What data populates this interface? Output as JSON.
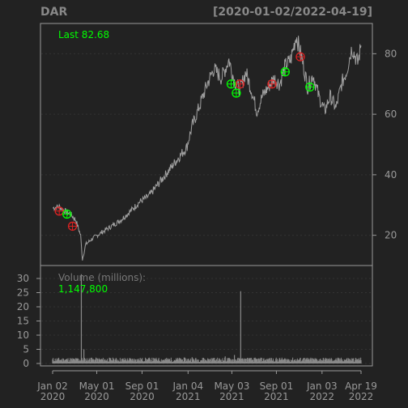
{
  "header": {
    "symbol": "DAR",
    "range": "[2020-01-02/2022-04-19]"
  },
  "price_panel": {
    "last_label": "Last 82.68",
    "y_ticks": [
      20,
      40,
      60,
      80
    ]
  },
  "volume_panel": {
    "label": "Volume (millions):",
    "value": "1,147,800",
    "y_ticks": [
      0,
      5,
      10,
      15,
      20,
      25,
      30
    ]
  },
  "x_axis": {
    "ticks": [
      {
        "date": "2020-01-02",
        "top": "Jan 02",
        "bottom": "2020"
      },
      {
        "date": "2020-05-01",
        "top": "May 01",
        "bottom": "2020"
      },
      {
        "date": "2020-09-01",
        "top": "Sep 01",
        "bottom": "2020"
      },
      {
        "date": "2021-01-04",
        "top": "Jan 04",
        "bottom": "2021"
      },
      {
        "date": "2021-05-03",
        "top": "May 03",
        "bottom": "2021"
      },
      {
        "date": "2021-09-01",
        "top": "Sep 01",
        "bottom": "2021"
      },
      {
        "date": "2022-01-03",
        "top": "Jan 03",
        "bottom": "2022"
      },
      {
        "date": "2022-04-19",
        "top": "Apr 19",
        "bottom": "2022"
      }
    ]
  },
  "colors": {
    "background": "#222222",
    "frame": "#999999",
    "grid": "#333333",
    "price_line": "#a0a0a0",
    "volume": "#8a8a8a",
    "green": "#00ff00",
    "red": "#dd2222",
    "title": "#888888",
    "tick_text": "#999999"
  },
  "chart_data": {
    "type": "line",
    "x_range": [
      "2020-01-02",
      "2022-04-19"
    ],
    "price": {
      "ylim": [
        10,
        90
      ],
      "x": [
        "2020-01-02",
        "2020-01-20",
        "2020-02-05",
        "2020-02-20",
        "2020-03-05",
        "2020-03-18",
        "2020-03-23",
        "2020-04-01",
        "2020-04-20",
        "2020-05-15",
        "2020-06-10",
        "2020-07-05",
        "2020-08-01",
        "2020-08-25",
        "2020-09-20",
        "2020-10-15",
        "2020-11-10",
        "2020-12-05",
        "2020-12-31",
        "2021-01-15",
        "2021-02-05",
        "2021-02-25",
        "2021-03-15",
        "2021-04-05",
        "2021-04-25",
        "2021-05-10",
        "2021-05-25",
        "2021-06-10",
        "2021-06-25",
        "2021-07-10",
        "2021-07-25",
        "2021-08-10",
        "2021-08-25",
        "2021-09-10",
        "2021-09-25",
        "2021-10-10",
        "2021-10-25",
        "2021-11-10",
        "2021-11-25",
        "2021-12-10",
        "2021-12-25",
        "2022-01-10",
        "2022-01-25",
        "2022-02-10",
        "2022-02-25",
        "2022-03-10",
        "2022-03-25",
        "2022-04-10",
        "2022-04-19"
      ],
      "close": [
        29,
        29.5,
        28,
        27,
        25,
        20,
        12,
        17,
        19,
        21,
        23,
        25,
        28,
        31,
        33,
        37,
        41,
        45,
        49,
        56,
        63,
        70,
        75,
        72,
        78,
        71,
        68,
        74,
        68,
        61,
        66,
        69,
        72,
        70,
        76,
        78,
        86,
        78,
        69,
        73,
        66,
        61,
        66,
        62,
        70,
        74,
        82,
        77,
        82.68
      ],
      "buy_signals": [
        {
          "date": "2020-02-10",
          "price": 27
        },
        {
          "date": "2021-05-01",
          "price": 70
        },
        {
          "date": "2021-05-15",
          "price": 67
        },
        {
          "date": "2021-09-25",
          "price": 74
        },
        {
          "date": "2021-12-01",
          "price": 69
        }
      ],
      "sell_signals": [
        {
          "date": "2020-01-20",
          "price": 28
        },
        {
          "date": "2020-02-25",
          "price": 23
        },
        {
          "date": "2021-05-25",
          "price": 70
        },
        {
          "date": "2021-08-20",
          "price": 70
        },
        {
          "date": "2021-11-05",
          "price": 79
        }
      ]
    },
    "volume": {
      "unit": "millions",
      "ylim": [
        0,
        32
      ],
      "x": [
        "2020-01-02",
        "2020-02-01",
        "2020-03-10",
        "2020-03-20",
        "2020-03-27",
        "2020-04-15",
        "2020-05-15",
        "2020-06-15",
        "2020-07-15",
        "2020-08-15",
        "2020-09-15",
        "2020-10-15",
        "2020-11-15",
        "2020-12-15",
        "2021-01-15",
        "2021-02-15",
        "2021-03-15",
        "2021-04-15",
        "2021-05-10",
        "2021-05-27",
        "2021-06-15",
        "2021-07-15",
        "2021-08-15",
        "2021-09-15",
        "2021-10-15",
        "2021-11-15",
        "2021-12-15",
        "2022-01-15",
        "2022-02-15",
        "2022-03-15",
        "2022-04-19"
      ],
      "values": [
        1.2,
        1.5,
        1.8,
        31.5,
        5,
        2,
        1.5,
        1.3,
        1.2,
        1.4,
        1.3,
        1.5,
        1.6,
        1.8,
        2.2,
        2,
        1.9,
        2.5,
        3,
        25.5,
        2,
        1.6,
        1.8,
        1.5,
        1.4,
        2,
        1.8,
        1.7,
        1.6,
        1.9,
        1.15
      ]
    }
  }
}
